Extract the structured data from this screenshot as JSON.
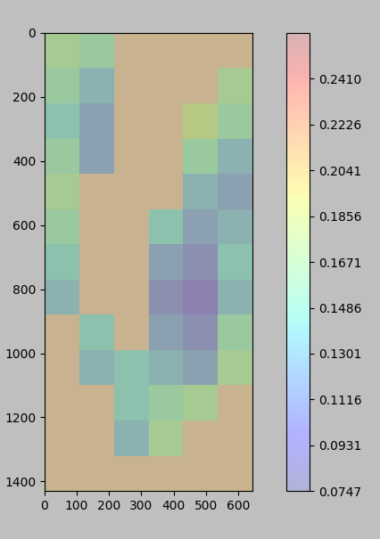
{
  "chart_data": {
    "type": "heatmap",
    "x_edges": [
      0,
      107.5,
      215,
      322.5,
      430,
      537.5,
      645
    ],
    "y_edges": [
      0,
      110,
      220,
      330,
      440,
      550,
      660,
      770,
      880,
      990,
      1100,
      1210,
      1320,
      1430
    ],
    "cells": [
      [
        0.16,
        0.15,
        null,
        null,
        null,
        null
      ],
      [
        0.15,
        0.13,
        null,
        null,
        null,
        0.16
      ],
      [
        0.14,
        0.12,
        null,
        null,
        0.17,
        0.15
      ],
      [
        0.15,
        0.12,
        null,
        null,
        0.15,
        0.13
      ],
      [
        0.16,
        null,
        null,
        null,
        0.13,
        0.12
      ],
      [
        0.15,
        null,
        null,
        0.14,
        0.12,
        0.13
      ],
      [
        0.14,
        null,
        null,
        0.12,
        0.11,
        0.14
      ],
      [
        0.13,
        null,
        null,
        0.11,
        0.1,
        0.13
      ],
      [
        null,
        0.14,
        null,
        0.12,
        0.11,
        0.15
      ],
      [
        null,
        0.13,
        0.14,
        0.13,
        0.12,
        0.16
      ],
      [
        null,
        null,
        0.14,
        0.15,
        0.16,
        null
      ],
      [
        null,
        null,
        0.13,
        0.16,
        null,
        null
      ],
      [
        null,
        null,
        null,
        null,
        null,
        null
      ]
    ],
    "xlim": [
      0,
      645
    ],
    "ylim": [
      1430,
      0
    ],
    "xticks": [
      0,
      100,
      200,
      300,
      400,
      500,
      600
    ],
    "yticks": [
      0,
      200,
      400,
      600,
      800,
      1000,
      1200,
      1400
    ],
    "color_range": [
      0.0747,
      0.2595
    ],
    "color_ticks": [
      0.0747,
      0.0931,
      0.1116,
      0.1301,
      0.1486,
      0.1671,
      0.1856,
      0.2041,
      0.2226,
      {
        "value": 0.241,
        "label": "0.2410"
      }
    ]
  }
}
